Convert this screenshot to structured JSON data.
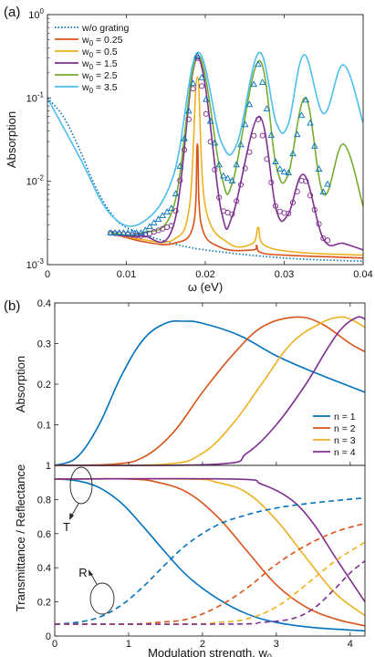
{
  "chart_data": [
    {
      "panel": "(a)",
      "type": "line",
      "xlabel": "ω (eV)",
      "ylabel": "Absorption",
      "xlim": [
        0,
        0.04
      ],
      "ylim": [
        0.001,
        1
      ],
      "yscale": "log",
      "x_ticks": [
        "0",
        "0.01",
        "0.02",
        "0.03",
        "0.04"
      ],
      "y_ticks": [
        {
          "base": "10",
          "exp": "-3"
        },
        {
          "base": "10",
          "exp": "-2"
        },
        {
          "base": "10",
          "exp": "-1"
        },
        {
          "base": "10",
          "exp": "0"
        }
      ],
      "legend_placement": "top-left",
      "series": [
        {
          "name": "w/o grating",
          "color": "#0072BD",
          "style": "dotted",
          "x": [
            0,
            0.002,
            0.004,
            0.006,
            0.008,
            0.01,
            0.015,
            0.02,
            0.03,
            0.04
          ],
          "y": [
            0.1,
            0.06,
            0.025,
            0.009,
            0.0042,
            0.0028,
            0.0019,
            0.0015,
            0.0012,
            0.0011
          ]
        },
        {
          "name_base": "w",
          "name_sub": "0",
          "name_suffix": " = 0.25",
          "color": "#D95319",
          "style": "solid",
          "x": [
            0.008,
            0.012,
            0.016,
            0.0185,
            0.019,
            0.0195,
            0.022,
            0.026,
            0.0265,
            0.027,
            0.03,
            0.04
          ],
          "y": [
            0.0024,
            0.0019,
            0.0018,
            0.003,
            0.028,
            0.003,
            0.0016,
            0.0015,
            0.0017,
            0.0014,
            0.0013,
            0.0012
          ]
        },
        {
          "name_base": "w",
          "name_sub": "0",
          "name_suffix": " = 0.5",
          "color": "#EDB120",
          "style": "solid",
          "x": [
            0.008,
            0.012,
            0.016,
            0.018,
            0.019,
            0.02,
            0.023,
            0.026,
            0.0267,
            0.0275,
            0.032,
            0.04
          ],
          "y": [
            0.0024,
            0.002,
            0.002,
            0.005,
            0.18,
            0.005,
            0.0018,
            0.0018,
            0.0028,
            0.0017,
            0.0014,
            0.0013
          ]
        },
        {
          "name_base": "w",
          "name_sub": "0",
          "name_suffix": " = 1.5",
          "color": "#7E2F8E",
          "style": "solid",
          "x": [
            0.008,
            0.012,
            0.016,
            0.019,
            0.022,
            0.0235,
            0.0268,
            0.029,
            0.0305,
            0.0325,
            0.035,
            0.0375,
            0.04
          ],
          "y": [
            0.0024,
            0.0022,
            0.003,
            0.3,
            0.0045,
            0.004,
            0.06,
            0.0045,
            0.004,
            0.012,
            0.002,
            0.0018,
            0.0015
          ]
        },
        {
          "name_base": "w",
          "name_sub": "0",
          "name_suffix": " = 2.5",
          "color": "#77AC30",
          "style": "solid",
          "x": [
            0.008,
            0.012,
            0.016,
            0.019,
            0.022,
            0.0235,
            0.0268,
            0.029,
            0.0305,
            0.0327,
            0.035,
            0.0375,
            0.04
          ],
          "y": [
            0.0024,
            0.0024,
            0.005,
            0.32,
            0.012,
            0.01,
            0.28,
            0.015,
            0.012,
            0.1,
            0.007,
            0.028,
            0.005
          ]
        },
        {
          "name_base": "w",
          "name_sub": "0",
          "name_suffix": " = 3.5",
          "color": "#4DBEEE",
          "style": "solid",
          "x": [
            0,
            0.004,
            0.008,
            0.012,
            0.016,
            0.019,
            0.022,
            0.024,
            0.0268,
            0.029,
            0.0305,
            0.0325,
            0.035,
            0.0375,
            0.04
          ],
          "y": [
            0.1,
            0.02,
            0.004,
            0.0032,
            0.012,
            0.35,
            0.03,
            0.028,
            0.35,
            0.05,
            0.048,
            0.33,
            0.065,
            0.25,
            0.05
          ]
        }
      ]
    },
    {
      "panel": "(b)",
      "type": "line",
      "ylabel": "Absorption",
      "xlim": [
        0,
        4.2
      ],
      "ylim": [
        0,
        0.4
      ],
      "y_ticks": [
        "0",
        "0.1",
        "0.2",
        "0.3",
        "0.4"
      ],
      "legend_placement": "bottom-right",
      "series": [
        {
          "name": "n = 1",
          "color": "#0072BD",
          "x": [
            0,
            0.3,
            0.6,
            0.9,
            1.2,
            1.5,
            1.75,
            2.0,
            2.5,
            3.0,
            3.5,
            4.2
          ],
          "y": [
            0,
            0.02,
            0.1,
            0.22,
            0.31,
            0.35,
            0.355,
            0.35,
            0.32,
            0.27,
            0.23,
            0.18
          ]
        },
        {
          "name": "n = 2",
          "color": "#D95319",
          "x": [
            0,
            0.8,
            1.2,
            1.6,
            2.0,
            2.4,
            2.8,
            3.25,
            3.6,
            4.0,
            4.2
          ],
          "y": [
            0,
            0.003,
            0.02,
            0.08,
            0.18,
            0.27,
            0.34,
            0.365,
            0.35,
            0.3,
            0.28
          ]
        },
        {
          "name": "n = 3",
          "color": "#EDB120",
          "x": [
            0,
            1.5,
            2.0,
            2.4,
            2.8,
            3.2,
            3.6,
            3.85,
            4.0,
            4.2
          ],
          "y": [
            0,
            0.003,
            0.03,
            0.1,
            0.2,
            0.3,
            0.35,
            0.365,
            0.36,
            0.34
          ]
        },
        {
          "name": "n = 4",
          "color": "#7E2F8E",
          "x": [
            0,
            2.2,
            2.6,
            3.0,
            3.4,
            3.7,
            3.9,
            4.1,
            4.2
          ],
          "y": [
            0,
            0.003,
            0.03,
            0.1,
            0.2,
            0.29,
            0.34,
            0.365,
            0.36
          ]
        }
      ]
    },
    {
      "panel": "(b) lower",
      "type": "line",
      "xlabel_base": "Modulation strength, w",
      "xlabel_sub": "0",
      "ylabel": "Transmittance / Reflectance",
      "xlim": [
        0,
        4.2
      ],
      "ylim": [
        0,
        1
      ],
      "x_ticks": [
        "0",
        "1",
        "2",
        "3",
        "4"
      ],
      "y_ticks": [
        "0",
        "0.2",
        "0.4",
        "0.6",
        "0.8",
        "1"
      ],
      "annotations": [
        "T",
        "R"
      ],
      "series": [
        {
          "label": "T n=1",
          "color": "#0072BD",
          "style": "solid",
          "x": [
            0,
            0.3,
            0.6,
            0.9,
            1.2,
            1.5,
            1.8,
            2.2,
            2.6,
            3.0,
            3.5,
            4.2
          ],
          "y": [
            0.92,
            0.91,
            0.87,
            0.78,
            0.64,
            0.49,
            0.35,
            0.22,
            0.13,
            0.08,
            0.05,
            0.03
          ]
        },
        {
          "label": "T n=2",
          "color": "#D95319",
          "style": "solid",
          "x": [
            0,
            1.0,
            1.4,
            1.8,
            2.2,
            2.6,
            3.0,
            3.4,
            3.8,
            4.2
          ],
          "y": [
            0.92,
            0.92,
            0.9,
            0.84,
            0.7,
            0.5,
            0.3,
            0.17,
            0.1,
            0.06
          ]
        },
        {
          "label": "T n=3",
          "color": "#EDB120",
          "style": "solid",
          "x": [
            0,
            1.8,
            2.2,
            2.6,
            3.0,
            3.4,
            3.8,
            4.2
          ],
          "y": [
            0.92,
            0.92,
            0.9,
            0.84,
            0.68,
            0.46,
            0.25,
            0.12
          ]
        },
        {
          "label": "T n=4",
          "color": "#7E2F8E",
          "style": "solid",
          "x": [
            0,
            2.4,
            2.8,
            3.2,
            3.5,
            3.8,
            4.0,
            4.2
          ],
          "y": [
            0.92,
            0.92,
            0.89,
            0.8,
            0.66,
            0.46,
            0.33,
            0.2
          ]
        },
        {
          "label": "R n=1",
          "color": "#0072BD",
          "style": "dashed",
          "x": [
            0,
            0.3,
            0.6,
            0.9,
            1.2,
            1.5,
            1.8,
            2.2,
            2.6,
            3.0,
            3.5,
            4.2
          ],
          "y": [
            0.07,
            0.08,
            0.11,
            0.18,
            0.29,
            0.42,
            0.54,
            0.65,
            0.71,
            0.75,
            0.78,
            0.81
          ]
        },
        {
          "label": "R n=2",
          "color": "#D95319",
          "style": "dashed",
          "x": [
            0,
            1.0,
            1.4,
            1.8,
            2.2,
            2.6,
            3.0,
            3.4,
            3.8,
            4.2
          ],
          "y": [
            0.07,
            0.07,
            0.08,
            0.1,
            0.17,
            0.28,
            0.42,
            0.53,
            0.61,
            0.66
          ]
        },
        {
          "label": "R n=3",
          "color": "#EDB120",
          "style": "dashed",
          "x": [
            0,
            1.8,
            2.2,
            2.6,
            3.0,
            3.4,
            3.8,
            4.2
          ],
          "y": [
            0.07,
            0.07,
            0.08,
            0.1,
            0.17,
            0.3,
            0.44,
            0.55
          ]
        },
        {
          "label": "R n=4",
          "color": "#7E2F8E",
          "style": "dashed",
          "x": [
            0,
            2.4,
            2.8,
            3.2,
            3.5,
            3.8,
            4.0,
            4.2
          ],
          "y": [
            0.07,
            0.07,
            0.08,
            0.1,
            0.16,
            0.28,
            0.37,
            0.44
          ]
        }
      ]
    }
  ]
}
